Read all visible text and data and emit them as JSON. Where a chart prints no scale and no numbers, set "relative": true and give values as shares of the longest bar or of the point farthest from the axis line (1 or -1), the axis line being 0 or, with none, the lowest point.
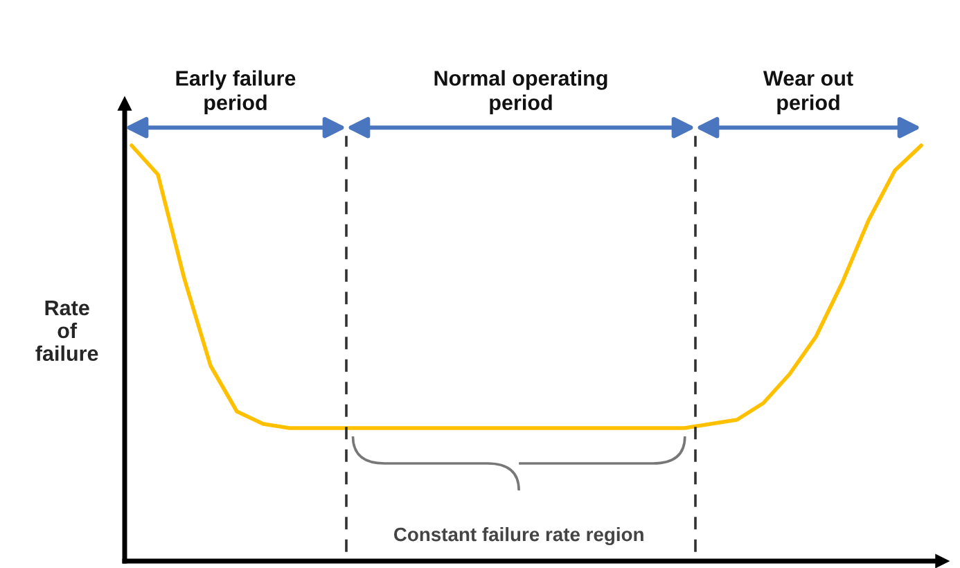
{
  "chart_data": {
    "type": "line",
    "relative": true,
    "ylabel": "Rate\nof\nfailure",
    "categories": [
      null,
      null,
      null,
      null,
      null,
      null,
      null,
      null,
      null,
      null,
      null,
      null,
      null,
      null,
      null,
      null,
      null,
      null,
      null,
      null,
      null,
      null,
      null,
      null,
      null,
      null,
      null,
      null,
      null,
      null,
      null
    ],
    "series": [
      {
        "color": "#ffc000",
        "values": [
          1.0,
          0.93,
          0.68,
          0.47,
          0.36,
          0.33,
          0.32,
          0.32,
          0.32,
          0.32,
          0.32,
          0.32,
          0.32,
          0.32,
          0.32,
          0.32,
          0.32,
          0.32,
          0.32,
          0.32,
          0.32,
          0.32,
          0.33,
          0.34,
          0.38,
          0.45,
          0.54,
          0.67,
          0.82,
          0.94,
          1.0
        ]
      }
    ],
    "annotations": [
      "Early failure\nperiod",
      "Normal operating\nperiod",
      "Wear out\nperiod",
      "Constant failure rate region"
    ],
    "grid": false,
    "legend": false,
    "marker": "none",
    "line_style": "solid"
  }
}
